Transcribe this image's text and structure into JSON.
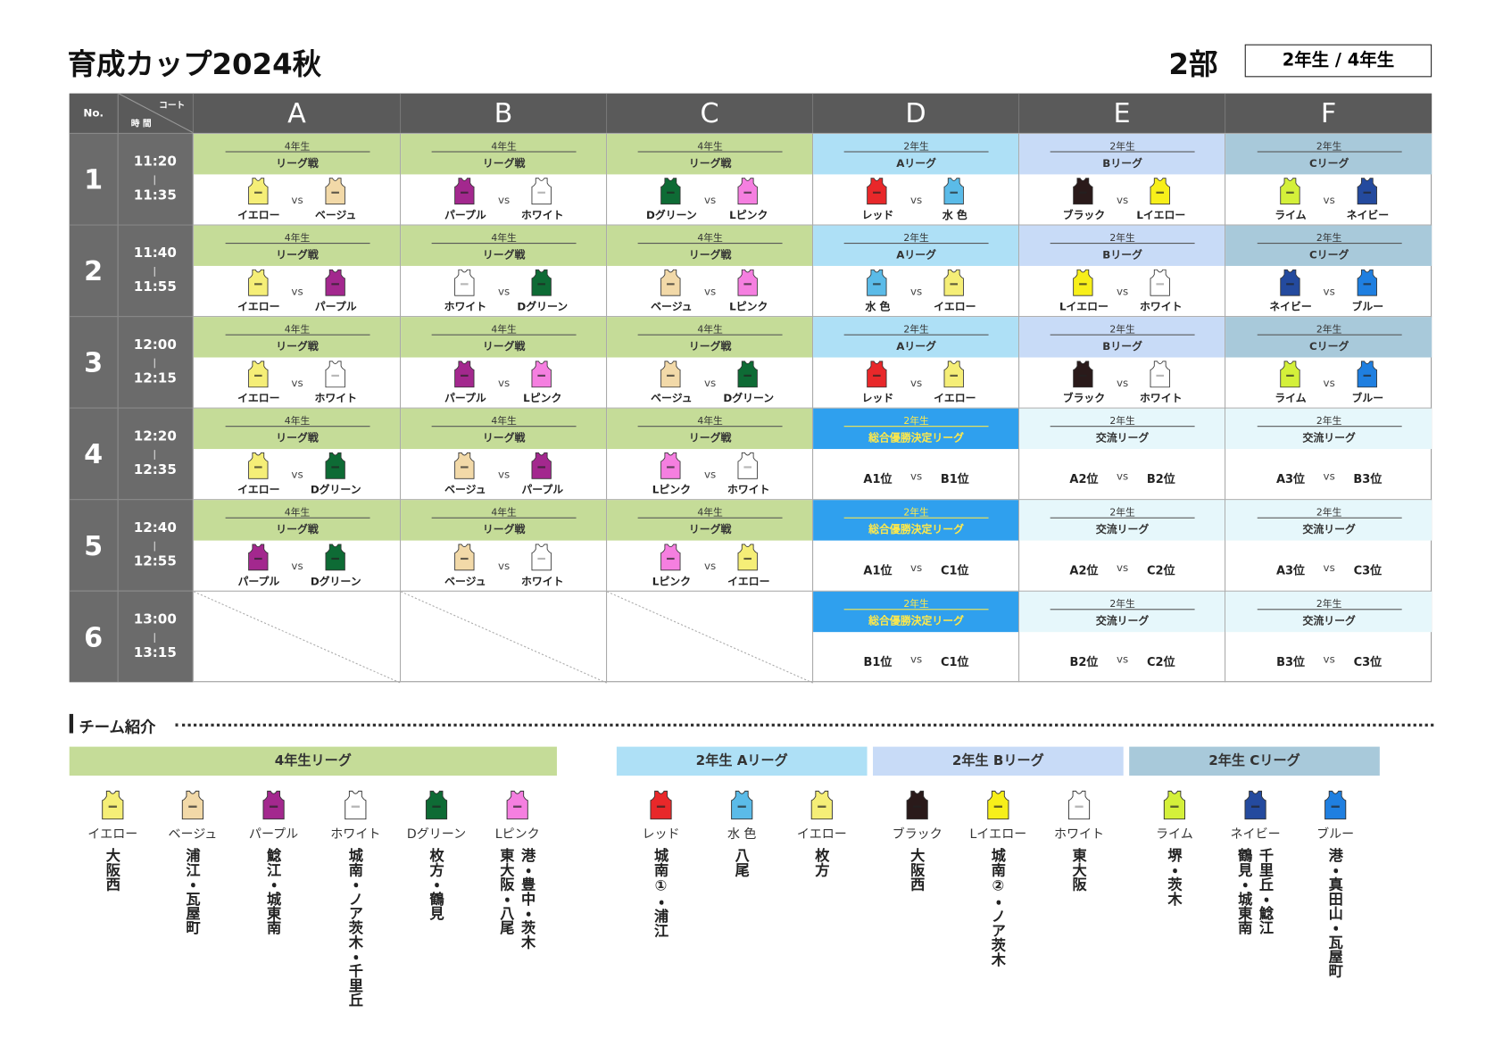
{
  "header": {
    "title": "育成カップ2024秋",
    "division": "2部",
    "grades": "2年生 / 4年生"
  },
  "table": {
    "no": "No.",
    "court": "コート",
    "time": "時 間",
    "courts": [
      "A",
      "B",
      "C",
      "D",
      "E",
      "F"
    ],
    "vs": "vs",
    "rows": [
      {
        "no": "1",
        "start": "11:20",
        "end": "11:35",
        "cells": [
          {
            "grade": "4年生",
            "league": "リーグ戦",
            "color": "#c5dc98",
            "home": "イエロー",
            "away": "ベージュ"
          },
          {
            "grade": "4年生",
            "league": "リーグ戦",
            "color": "#c5dc98",
            "home": "パープル",
            "away": "ホワイト"
          },
          {
            "grade": "4年生",
            "league": "リーグ戦",
            "color": "#c5dc98",
            "home": "Dグリーン",
            "away": "Lピンク"
          },
          {
            "grade": "2年生",
            "league": "Aリーグ",
            "color": "#aee0f6",
            "home": "レッド",
            "away": "水 色"
          },
          {
            "grade": "2年生",
            "league": "Bリーグ",
            "color": "#c8dbf7",
            "home": "ブラック",
            "away": "Lイエロー"
          },
          {
            "grade": "2年生",
            "league": "Cリーグ",
            "color": "#a8c9da",
            "home": "ライム",
            "away": "ネイビー"
          }
        ]
      },
      {
        "no": "2",
        "start": "11:40",
        "end": "11:55",
        "cells": [
          {
            "grade": "4年生",
            "league": "リーグ戦",
            "color": "#c5dc98",
            "home": "イエロー",
            "away": "パープル"
          },
          {
            "grade": "4年生",
            "league": "リーグ戦",
            "color": "#c5dc98",
            "home": "ホワイト",
            "away": "Dグリーン"
          },
          {
            "grade": "4年生",
            "league": "リーグ戦",
            "color": "#c5dc98",
            "home": "ベージュ",
            "away": "Lピンク"
          },
          {
            "grade": "2年生",
            "league": "Aリーグ",
            "color": "#aee0f6",
            "home": "水 色",
            "away": "イエロー"
          },
          {
            "grade": "2年生",
            "league": "Bリーグ",
            "color": "#c8dbf7",
            "home": "Lイエロー",
            "away": "ホワイト"
          },
          {
            "grade": "2年生",
            "league": "Cリーグ",
            "color": "#a8c9da",
            "home": "ネイビー",
            "away": "ブルー"
          }
        ]
      },
      {
        "no": "3",
        "start": "12:00",
        "end": "12:15",
        "cells": [
          {
            "grade": "4年生",
            "league": "リーグ戦",
            "color": "#c5dc98",
            "home": "イエロー",
            "away": "ホワイト"
          },
          {
            "grade": "4年生",
            "league": "リーグ戦",
            "color": "#c5dc98",
            "home": "パープル",
            "away": "Lピンク"
          },
          {
            "grade": "4年生",
            "league": "リーグ戦",
            "color": "#c5dc98",
            "home": "ベージュ",
            "away": "Dグリーン"
          },
          {
            "grade": "2年生",
            "league": "Aリーグ",
            "color": "#aee0f6",
            "home": "レッド",
            "away": "イエロー"
          },
          {
            "grade": "2年生",
            "league": "Bリーグ",
            "color": "#c8dbf7",
            "home": "ブラック",
            "away": "ホワイト"
          },
          {
            "grade": "2年生",
            "league": "Cリーグ",
            "color": "#a8c9da",
            "home": "ライム",
            "away": "ブルー"
          }
        ]
      },
      {
        "no": "4",
        "start": "12:20",
        "end": "12:35",
        "cells": [
          {
            "grade": "4年生",
            "league": "リーグ戦",
            "color": "#c5dc98",
            "home": "イエロー",
            "away": "Dグリーン"
          },
          {
            "grade": "4年生",
            "league": "リーグ戦",
            "color": "#c5dc98",
            "home": "ベージュ",
            "away": "パープル"
          },
          {
            "grade": "4年生",
            "league": "リーグ戦",
            "color": "#c5dc98",
            "home": "Lピンク",
            "away": "ホワイト"
          },
          {
            "grade": "2年生",
            "league": "総合優勝決定リーグ",
            "color": "#2fa0ee",
            "text_color": "#ffe94a",
            "home": "A1位",
            "away": "B1位"
          },
          {
            "grade": "2年生",
            "league": "交流リーグ",
            "color": "#e6f7fb",
            "home": "A2位",
            "away": "B2位"
          },
          {
            "grade": "2年生",
            "league": "交流リーグ",
            "color": "#e6f7fb",
            "home": "A3位",
            "away": "B3位"
          }
        ]
      },
      {
        "no": "5",
        "start": "12:40",
        "end": "12:55",
        "cells": [
          {
            "grade": "4年生",
            "league": "リーグ戦",
            "color": "#c5dc98",
            "home": "パープル",
            "away": "Dグリーン"
          },
          {
            "grade": "4年生",
            "league": "リーグ戦",
            "color": "#c5dc98",
            "home": "ベージュ",
            "away": "ホワイト"
          },
          {
            "grade": "4年生",
            "league": "リーグ戦",
            "color": "#c5dc98",
            "home": "Lピンク",
            "away": "イエロー"
          },
          {
            "grade": "2年生",
            "league": "総合優勝決定リーグ",
            "color": "#2fa0ee",
            "text_color": "#ffe94a",
            "home": "A1位",
            "away": "C1位"
          },
          {
            "grade": "2年生",
            "league": "交流リーグ",
            "color": "#e6f7fb",
            "home": "A2位",
            "away": "C2位"
          },
          {
            "grade": "2年生",
            "league": "交流リーグ",
            "color": "#e6f7fb",
            "home": "A3位",
            "away": "C3位"
          }
        ]
      },
      {
        "no": "6",
        "start": "13:00",
        "end": "13:15",
        "cells": [
          null,
          null,
          null,
          {
            "grade": "2年生",
            "league": "総合優勝決定リーグ",
            "color": "#2fa0ee",
            "text_color": "#ffe94a",
            "home": "B1位",
            "away": "C1位"
          },
          {
            "grade": "2年生",
            "league": "交流リーグ",
            "color": "#e6f7fb",
            "home": "B2位",
            "away": "C2位"
          },
          {
            "grade": "2年生",
            "league": "交流リーグ",
            "color": "#e6f7fb",
            "home": "B3位",
            "away": "C3位"
          }
        ]
      }
    ]
  },
  "teams": {
    "title": "チーム紹介",
    "groups": [
      {
        "name": "4年生リーグ",
        "color": "#c5dc98",
        "teams": [
          {
            "name": "イエロー",
            "color": "#f5ee77",
            "members": [
              "大阪西"
            ]
          },
          {
            "name": "ベージュ",
            "color": "#f2d9a8",
            "members": [
              "浦江・瓦屋町"
            ]
          },
          {
            "name": "パープル",
            "color": "#a3288e",
            "members": [
              "鯰江・城東南"
            ]
          },
          {
            "name": "ホワイト",
            "color": "#ffffff",
            "members": [
              "城南・ノア茨木・千里丘"
            ]
          },
          {
            "name": "Dグリーン",
            "color": "#0e6b35",
            "members": [
              "枚方・鶴見"
            ]
          },
          {
            "name": "Lピンク",
            "color": "#f57fe0",
            "members": [
              "港・豊中・茨木",
              "東大阪・八尾"
            ]
          }
        ]
      },
      {
        "name": "2年生 Aリーグ",
        "color": "#aee0f6",
        "teams": [
          {
            "name": "レッド",
            "color": "#e8282a",
            "members": [
              "城南①・浦江"
            ]
          },
          {
            "name": "水 色",
            "color": "#5bbbe8",
            "members": [
              "八尾"
            ]
          },
          {
            "name": "イエロー",
            "color": "#f5ee77",
            "members": [
              "枚方"
            ]
          }
        ]
      },
      {
        "name": "2年生 Bリーグ",
        "color": "#c8dbf7",
        "teams": [
          {
            "name": "ブラック",
            "color": "#2a1a1a",
            "members": [
              "大阪西"
            ]
          },
          {
            "name": "Lイエロー",
            "color": "#f7ef1a",
            "members": [
              "城南②・ノア茨木"
            ]
          },
          {
            "name": "ホワイト",
            "color": "#ffffff",
            "members": [
              "東大阪"
            ]
          }
        ]
      },
      {
        "name": "2年生 Cリーグ",
        "color": "#a8c9da",
        "teams": [
          {
            "name": "ライム",
            "color": "#d4f03a",
            "members": [
              "堺・茨木"
            ]
          },
          {
            "name": "ネイビー",
            "color": "#244a9e",
            "members": [
              "千里丘・鯰江",
              "鶴見・城東南"
            ]
          },
          {
            "name": "ブルー",
            "color": "#1f7fe0",
            "members": [
              "港・真田山・瓦屋町"
            ]
          }
        ]
      }
    ]
  }
}
